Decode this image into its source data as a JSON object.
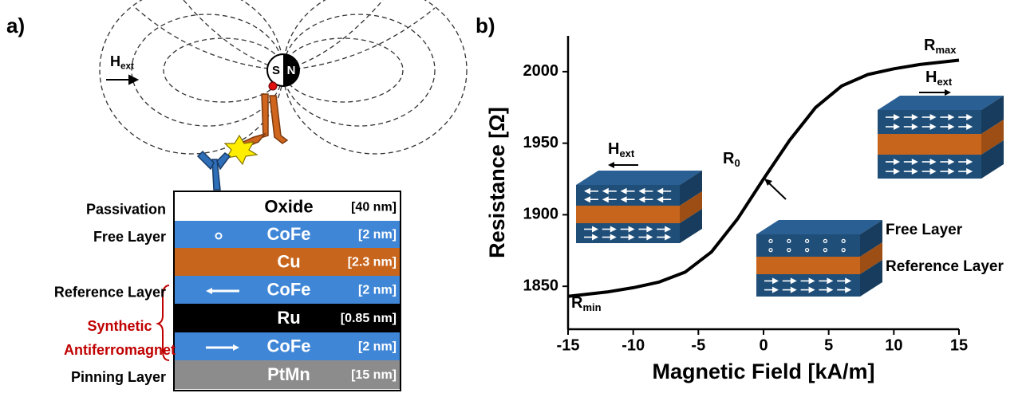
{
  "panel_a": {
    "label": "a)",
    "field": {
      "text": "H",
      "sub": "ext"
    },
    "magnet": {
      "south": "S",
      "north": "N"
    },
    "layers": [
      {
        "label": "Passivation",
        "material": "Oxide",
        "thickness": "[40 nm]",
        "color": "#ffffff",
        "text_color": "#000000"
      },
      {
        "label": "Free Layer",
        "material": "CoFe",
        "thickness": "[2 nm]",
        "color": "#3f86d6",
        "text_color": "#ffffff"
      },
      {
        "material": "Cu",
        "thickness": "[2.3 nm]",
        "color": "#c8651c",
        "text_color": "#ffffff"
      },
      {
        "label": "Reference Layer",
        "material": "CoFe",
        "thickness": "[2 nm]",
        "color": "#3f86d6",
        "text_color": "#ffffff"
      },
      {
        "material": "Ru",
        "thickness": "[0.85 nm]",
        "color": "#000000",
        "text_color": "#ffffff"
      },
      {
        "material": "CoFe",
        "thickness": "[2 nm]",
        "color": "#3f86d6",
        "text_color": "#ffffff"
      },
      {
        "label": "Pinning Layer",
        "material": "PtMn",
        "thickness": "[15 nm]",
        "color": "#8c8c8c",
        "text_color": "#ffffff"
      }
    ],
    "saf_label": [
      "Synthetic",
      "Antiferromagnet"
    ]
  },
  "chart_data": {
    "type": "line",
    "panel_label": "b)",
    "xlabel": "Magnetic Field [kA/m]",
    "ylabel": "Resistance [Ω]",
    "x": [
      -15,
      -12,
      -10,
      -8,
      -6,
      -4,
      -2,
      0,
      2,
      4,
      6,
      8,
      10,
      12,
      15
    ],
    "values": [
      1843,
      1846,
      1849,
      1853,
      1860,
      1874,
      1897,
      1925,
      1952,
      1975,
      1990,
      1998,
      2002,
      2005,
      2008
    ],
    "color": "#000000",
    "xlim": [
      -15,
      15
    ],
    "ylim": [
      1820,
      2025
    ],
    "xticks": [
      -15,
      -10,
      -5,
      0,
      5,
      10,
      15
    ],
    "yticks": [
      1850,
      1900,
      1950,
      2000
    ],
    "annotations": {
      "r_max": {
        "text": "R",
        "sub": "max"
      },
      "r_min": {
        "text": "R",
        "sub": "min"
      },
      "r_0": {
        "text": "R",
        "sub": "0"
      },
      "field_left": {
        "text": "H",
        "sub": "ext"
      },
      "field_right": {
        "text": "H",
        "sub": "ext"
      },
      "free_layer": "Free Layer",
      "reference_layer": "Reference Layer"
    }
  }
}
